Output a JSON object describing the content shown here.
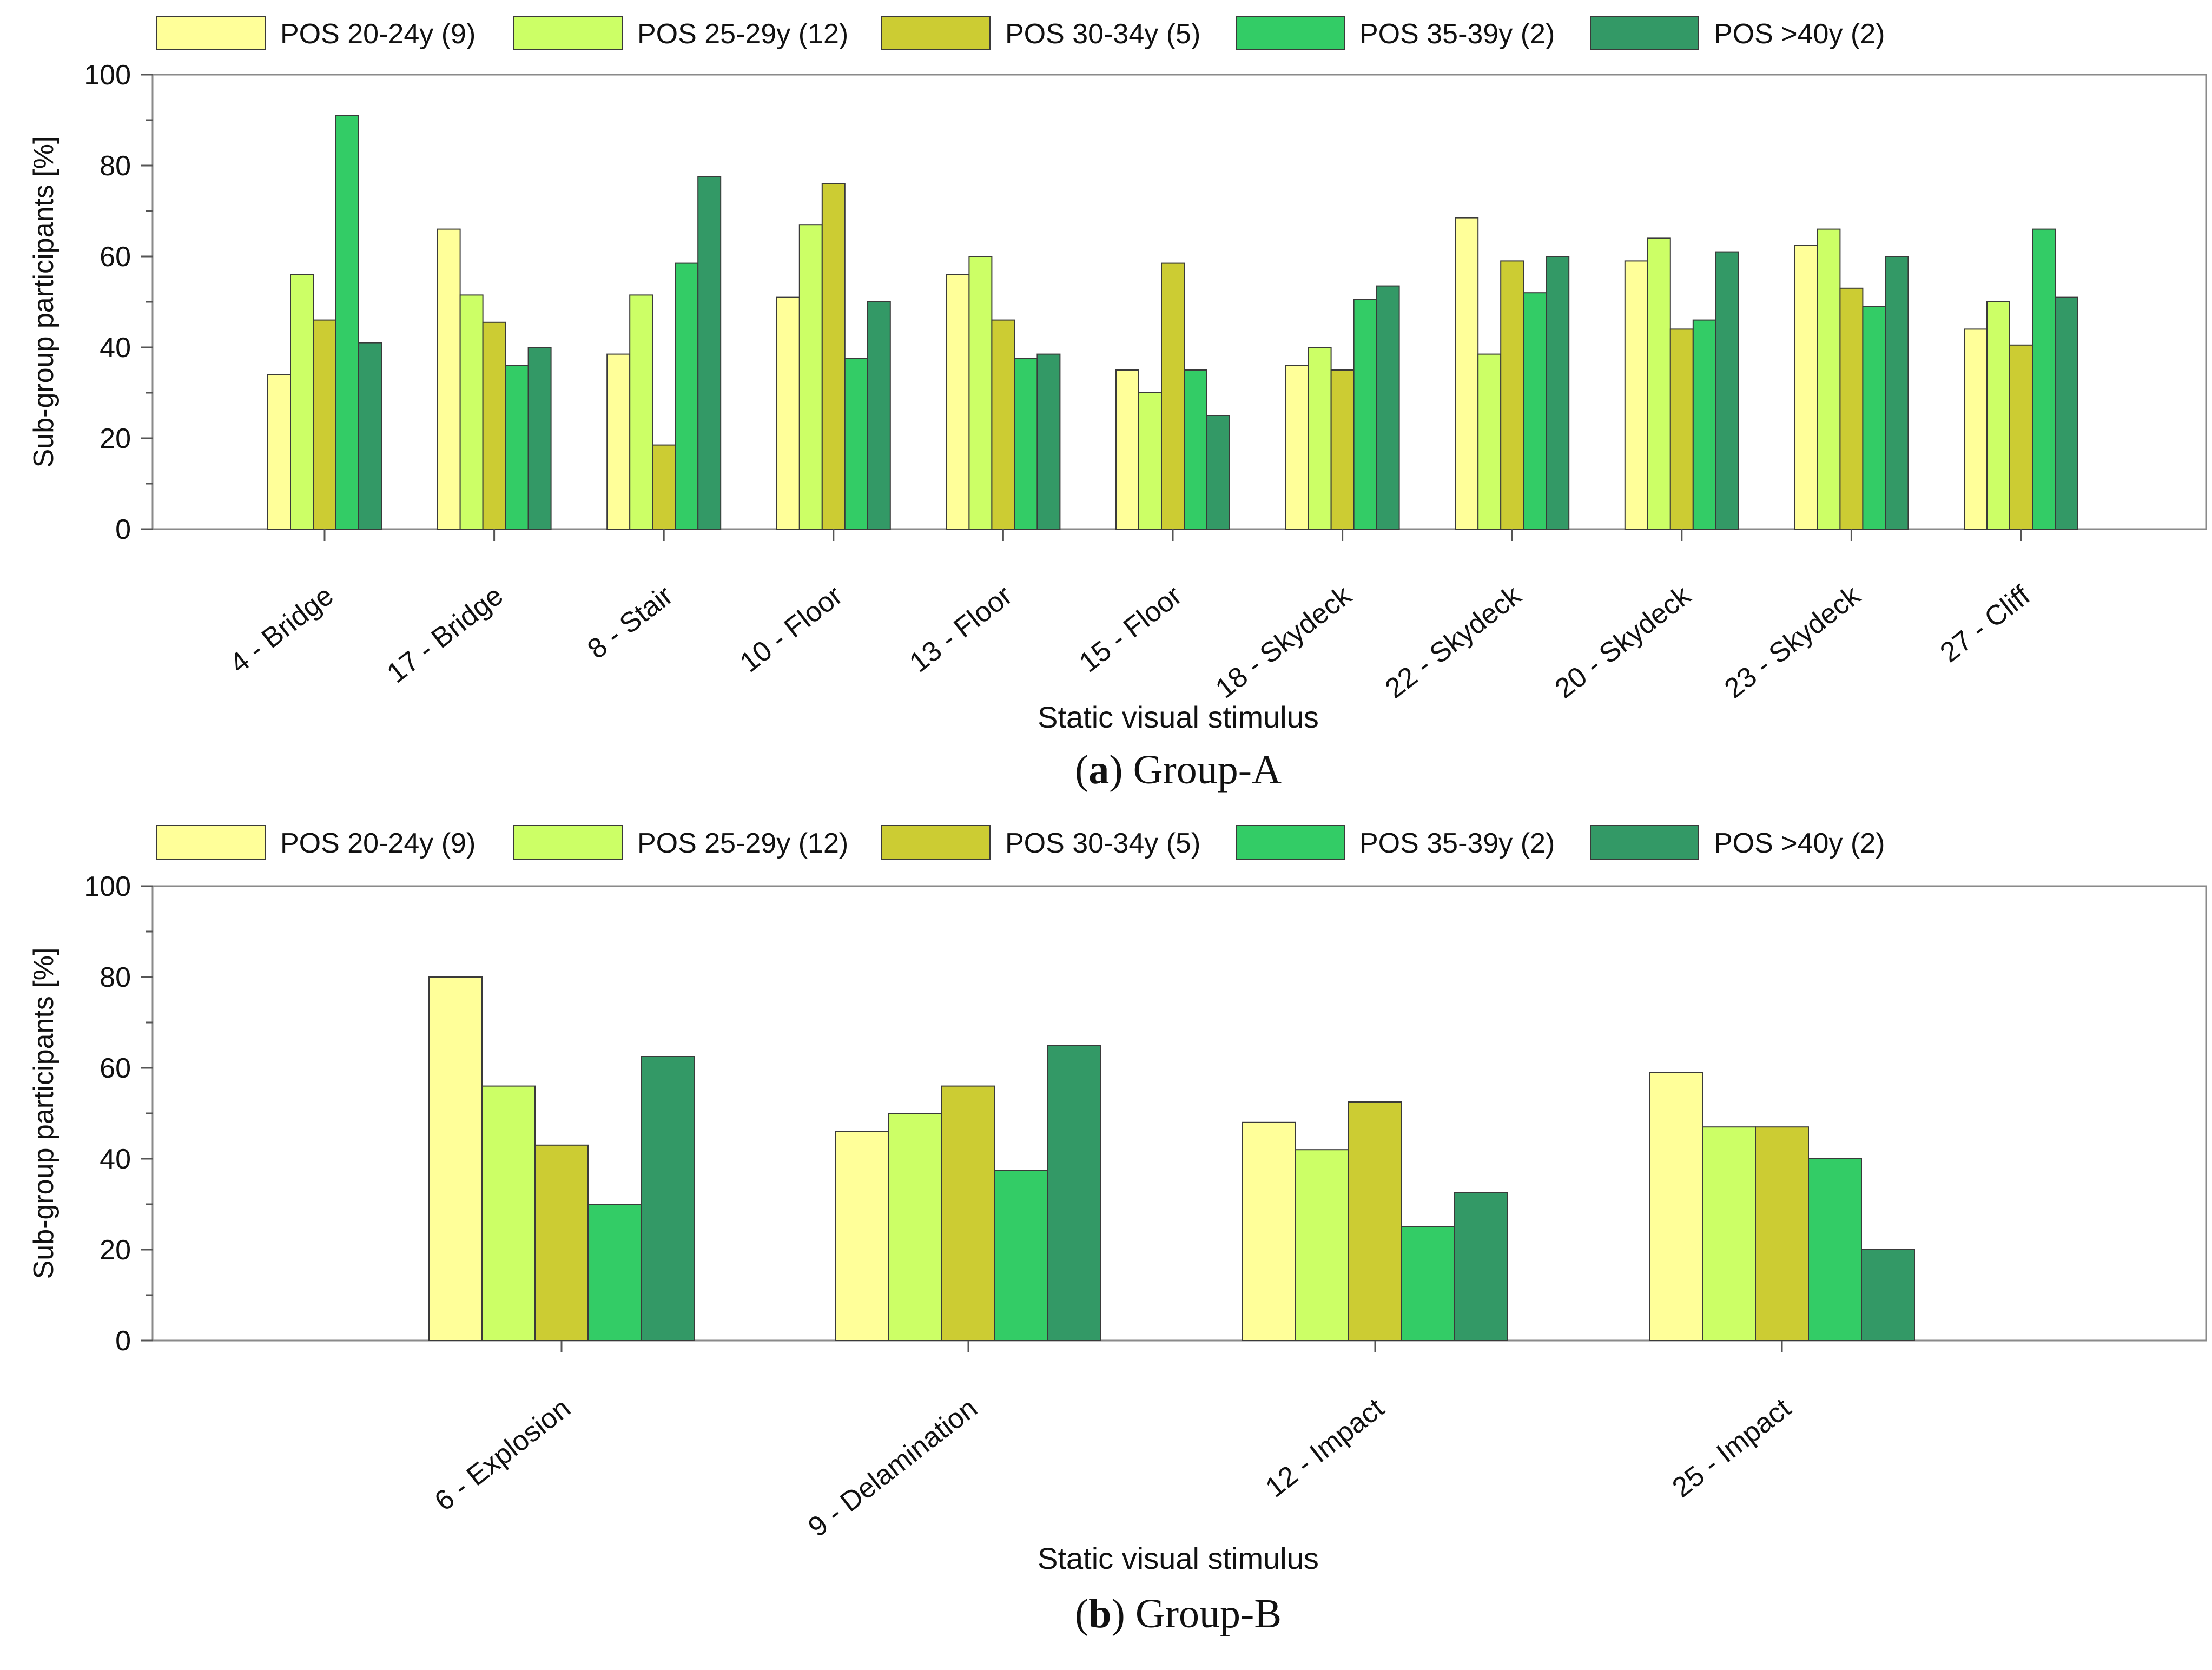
{
  "chart_data": [
    {
      "type": "bar",
      "caption_letter": "a",
      "caption_text": ") Group-A",
      "caption_open": "(",
      "xlabel": "Static visual stimulus",
      "ylabel": "Sub-group participants  [%]",
      "ylim": [
        0,
        100
      ],
      "yticks": [
        "0",
        "20",
        "40",
        "60",
        "80",
        "100"
      ],
      "categories": [
        "4 - Bridge",
        "17 - Bridge",
        "8 - Stair",
        "10 - Floor",
        "13 - Floor",
        "15 - Floor",
        "18 - Skydeck",
        "22 - Skydeck",
        "20 - Skydeck",
        "23 - Skydeck",
        "27 - Cliff"
      ],
      "legend_position": "top",
      "series": [
        {
          "name": "POS 20-24y (9)",
          "color": "#FFFF99",
          "values": [
            34,
            66,
            38.5,
            51,
            56,
            35,
            36,
            68.5,
            59,
            62.5,
            44
          ]
        },
        {
          "name": "POS 25-29y (12)",
          "color": "#CCFF66",
          "values": [
            56,
            51.5,
            51.5,
            67,
            60,
            30,
            40,
            38.5,
            64,
            66,
            50
          ]
        },
        {
          "name": "POS 30-34y (5)",
          "color": "#CCCC33",
          "values": [
            46,
            45.5,
            18.5,
            76,
            46,
            58.5,
            35,
            59,
            44,
            53,
            40.5
          ]
        },
        {
          "name": "POS 35-39y (2)",
          "color": "#33CC66",
          "values": [
            91,
            36,
            58.5,
            37.5,
            37.5,
            35,
            50.5,
            52,
            46,
            49,
            66
          ]
        },
        {
          "name": "POS >40y (2)",
          "color": "#339966",
          "values": [
            41,
            40,
            77.5,
            50,
            38.5,
            25,
            53.5,
            60,
            61,
            60,
            51
          ]
        }
      ]
    },
    {
      "type": "bar",
      "caption_letter": "b",
      "caption_text": ") Group-B",
      "caption_open": "(",
      "xlabel": "Static visual stimulus",
      "ylabel": "Sub-group participants  [%]",
      "ylim": [
        0,
        100
      ],
      "yticks": [
        "0",
        "20",
        "40",
        "60",
        "80",
        "100"
      ],
      "categories": [
        "6 - Explosion",
        "9 - Delamination",
        "12 - Impact",
        "25 - Impact"
      ],
      "legend_position": "top",
      "series": [
        {
          "name": "POS 20-24y (9)",
          "color": "#FFFF99",
          "values": [
            80,
            46,
            48,
            59
          ]
        },
        {
          "name": "POS 25-29y (12)",
          "color": "#CCFF66",
          "values": [
            56,
            50,
            42,
            47
          ]
        },
        {
          "name": "POS 30-34y (5)",
          "color": "#CCCC33",
          "values": [
            43,
            56,
            52.5,
            47
          ]
        },
        {
          "name": "POS 35-39y (2)",
          "color": "#33CC66",
          "values": [
            30,
            37.5,
            25,
            40
          ]
        },
        {
          "name": "POS >40y (2)",
          "color": "#339966",
          "values": [
            62.5,
            65,
            32.5,
            20
          ]
        }
      ]
    }
  ]
}
